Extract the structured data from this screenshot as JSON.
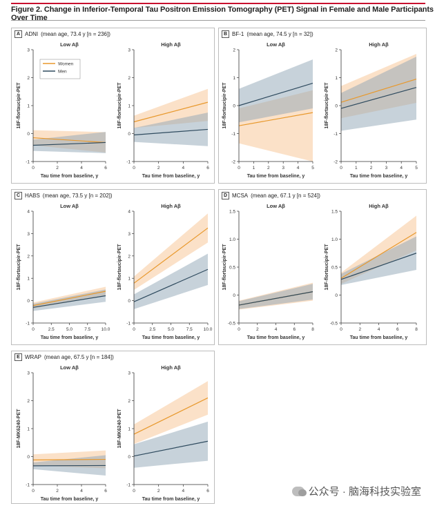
{
  "figure_title": "Figure 2. Change in Inferior-Temporal Tau Positron Emission Tomography (PET) Signal in Female and Male Participants Over Time",
  "colors": {
    "women": "#e8982b",
    "men": "#2e4a5e",
    "women_band": "#f7c99a",
    "men_band": "#8fa6b6",
    "accent": "#c8102e"
  },
  "watermark": "公众号 · 脑海科技实验室",
  "panels": [
    {
      "letter": "A",
      "cohort": "ADNI",
      "detail": "(mean age, 73.4 y [n = 236])"
    },
    {
      "letter": "B",
      "cohort": "BF-1",
      "detail": "(mean age, 74.5 y [n = 32])"
    },
    {
      "letter": "C",
      "cohort": "HABS",
      "detail": "(mean age, 73.5 y [n = 202])"
    },
    {
      "letter": "D",
      "cohort": "MCSA",
      "detail": "(mean age, 67.1 y [n = 524])"
    },
    {
      "letter": "E",
      "cohort": "WRAP",
      "detail": "(mean age, 67.5 y [n = 184])"
    }
  ],
  "chart_data": [
    {
      "id": "A-low",
      "type": "line",
      "title": "Low Aβ",
      "xlabel": "Tau time from baseline, y",
      "ylabel": "18F-flortaucipir-PET",
      "xlim": [
        0,
        6
      ],
      "ylim": [
        -1,
        3
      ],
      "xticks": [
        "0",
        "2",
        "4",
        "6"
      ],
      "yticks": [
        "-1",
        "0",
        "1",
        "2",
        "3"
      ],
      "legend": [
        "Women",
        "Men"
      ],
      "series": [
        {
          "name": "Women",
          "x": [
            0,
            6
          ],
          "y": [
            -0.15,
            -0.32
          ],
          "lower": [
            -0.42,
            -0.68
          ],
          "upper": [
            0.12,
            0.05
          ]
        },
        {
          "name": "Men",
          "x": [
            0,
            6
          ],
          "y": [
            -0.42,
            -0.32
          ],
          "lower": [
            -0.62,
            -0.7
          ],
          "upper": [
            -0.22,
            0.06
          ]
        }
      ]
    },
    {
      "id": "A-high",
      "type": "line",
      "title": "High Aβ",
      "xlabel": "Tau time from baseline, y",
      "ylabel": "18F-flortaucipir-PET",
      "xlim": [
        0,
        6
      ],
      "ylim": [
        -1,
        3
      ],
      "xticks": [
        "0",
        "2",
        "4",
        "6"
      ],
      "yticks": [
        "-1",
        "0",
        "1",
        "2",
        "3"
      ],
      "series": [
        {
          "name": "Women",
          "x": [
            0,
            6
          ],
          "y": [
            0.42,
            1.12
          ],
          "lower": [
            0.2,
            0.45
          ],
          "upper": [
            0.64,
            1.6
          ]
        },
        {
          "name": "Men",
          "x": [
            0,
            6
          ],
          "y": [
            -0.05,
            0.15
          ],
          "lower": [
            -0.3,
            -0.45
          ],
          "upper": [
            0.2,
            0.75
          ]
        }
      ]
    },
    {
      "id": "B-low",
      "type": "line",
      "title": "Low Aβ",
      "xlabel": "Tau time from baseline, y",
      "ylabel": "18F-flortaucipir-PET",
      "xlim": [
        0,
        5
      ],
      "ylim": [
        -2,
        2
      ],
      "xticks": [
        "0",
        "1",
        "2",
        "3",
        "4",
        "5"
      ],
      "yticks": [
        "-2",
        "-1",
        "0",
        "1",
        "2"
      ],
      "series": [
        {
          "name": "Women",
          "x": [
            0,
            5
          ],
          "y": [
            -0.72,
            -0.25
          ],
          "lower": [
            -1.35,
            -2.0
          ],
          "upper": [
            -0.1,
            0.55
          ]
        },
        {
          "name": "Men",
          "x": [
            0,
            5
          ],
          "y": [
            0.0,
            0.8
          ],
          "lower": [
            -0.6,
            -0.1
          ],
          "upper": [
            0.6,
            1.65
          ]
        }
      ]
    },
    {
      "id": "B-high",
      "type": "line",
      "title": "High Aβ",
      "xlabel": "Tau time from baseline, y",
      "ylabel": "18F-flortaucipir-PET",
      "xlim": [
        0,
        5
      ],
      "ylim": [
        -2,
        2
      ],
      "xticks": [
        "0",
        "1",
        "2",
        "3",
        "4",
        "5"
      ],
      "yticks": [
        "-2",
        "-1",
        "0",
        "1",
        "2"
      ],
      "series": [
        {
          "name": "Women",
          "x": [
            0,
            5
          ],
          "y": [
            0.12,
            0.95
          ],
          "lower": [
            -0.45,
            0.1
          ],
          "upper": [
            0.7,
            1.85
          ]
        },
        {
          "name": "Men",
          "x": [
            0,
            5
          ],
          "y": [
            -0.1,
            0.65
          ],
          "lower": [
            -0.9,
            -0.5
          ],
          "upper": [
            0.45,
            1.75
          ]
        }
      ]
    },
    {
      "id": "C-low",
      "type": "line",
      "title": "Low Aβ",
      "xlabel": "Tau time from baseline, y",
      "ylabel": "18F-flortaucipir-PET",
      "xlim": [
        0,
        10
      ],
      "ylim": [
        -1,
        4
      ],
      "xticks": [
        "0",
        "2.5",
        "5.0",
        "7.5",
        "10.0"
      ],
      "yticks": [
        "-1",
        "0",
        "1",
        "2",
        "3",
        "4"
      ],
      "series": [
        {
          "name": "Women",
          "x": [
            0,
            10
          ],
          "y": [
            -0.22,
            0.42
          ],
          "lower": [
            -0.35,
            0.22
          ],
          "upper": [
            -0.08,
            0.62
          ]
        },
        {
          "name": "Men",
          "x": [
            0,
            10
          ],
          "y": [
            -0.3,
            0.22
          ],
          "lower": [
            -0.46,
            -0.05
          ],
          "upper": [
            -0.14,
            0.5
          ]
        }
      ]
    },
    {
      "id": "C-high",
      "type": "line",
      "title": "High Aβ",
      "xlabel": "Tau time from baseline, y",
      "ylabel": "18F-flortaucipir-PET",
      "xlim": [
        0,
        10
      ],
      "ylim": [
        -1,
        4
      ],
      "xticks": [
        "0",
        "2.5",
        "5.0",
        "7.5",
        "10.0"
      ],
      "yticks": [
        "-1",
        "0",
        "1",
        "2",
        "3",
        "4"
      ],
      "series": [
        {
          "name": "Women",
          "x": [
            0,
            10
          ],
          "y": [
            0.78,
            3.25
          ],
          "lower": [
            0.48,
            2.6
          ],
          "upper": [
            1.08,
            3.9
          ]
        },
        {
          "name": "Men",
          "x": [
            0,
            10
          ],
          "y": [
            -0.05,
            1.4
          ],
          "lower": [
            -0.38,
            0.7
          ],
          "upper": [
            0.28,
            2.1
          ]
        }
      ]
    },
    {
      "id": "D-low",
      "type": "line",
      "title": "Low Aβ",
      "xlabel": "Tau time from baseline, y",
      "ylabel": "18F-flortaucipir-PET",
      "xlim": [
        0,
        8
      ],
      "ylim": [
        -0.5,
        1.5
      ],
      "xticks": [
        "0",
        "2",
        "4",
        "6",
        "8"
      ],
      "yticks": [
        "-0.5",
        "0",
        "0.5",
        "1.0",
        "1.5"
      ],
      "series": [
        {
          "name": "Women",
          "x": [
            0,
            8
          ],
          "y": [
            -0.18,
            0.06
          ],
          "lower": [
            -0.26,
            -0.1
          ],
          "upper": [
            -0.1,
            0.22
          ]
        },
        {
          "name": "Men",
          "x": [
            0,
            8
          ],
          "y": [
            -0.18,
            0.06
          ],
          "lower": [
            -0.25,
            -0.08
          ],
          "upper": [
            -0.11,
            0.2
          ]
        }
      ]
    },
    {
      "id": "D-high",
      "type": "line",
      "title": "High Aβ",
      "xlabel": "Tau time from baseline, y",
      "ylabel": "18F-flortaucipir-PET",
      "xlim": [
        0,
        8
      ],
      "ylim": [
        -0.5,
        1.5
      ],
      "xticks": [
        "0",
        "2",
        "4",
        "6",
        "8"
      ],
      "yticks": [
        "-0.5",
        "0",
        "0.5",
        "1.0",
        "1.5"
      ],
      "series": [
        {
          "name": "Women",
          "x": [
            0,
            8
          ],
          "y": [
            0.3,
            1.12
          ],
          "lower": [
            0.2,
            0.8
          ],
          "upper": [
            0.4,
            1.42
          ]
        },
        {
          "name": "Men",
          "x": [
            0,
            8
          ],
          "y": [
            0.28,
            0.75
          ],
          "lower": [
            0.18,
            0.45
          ],
          "upper": [
            0.38,
            1.05
          ]
        }
      ]
    },
    {
      "id": "E-low",
      "type": "line",
      "title": "Low Aβ",
      "xlabel": "Tau time from baseline, y",
      "ylabel": "18F-MK6240-PET",
      "xlim": [
        0,
        6
      ],
      "ylim": [
        -1,
        3
      ],
      "xticks": [
        "0",
        "2",
        "4",
        "6"
      ],
      "yticks": [
        "-1",
        "0",
        "1",
        "2",
        "3"
      ],
      "series": [
        {
          "name": "Women",
          "x": [
            0,
            6
          ],
          "y": [
            -0.12,
            -0.1
          ],
          "lower": [
            -0.32,
            -0.42
          ],
          "upper": [
            0.08,
            0.22
          ]
        },
        {
          "name": "Men",
          "x": [
            0,
            6
          ],
          "y": [
            -0.33,
            -0.32
          ],
          "lower": [
            -0.45,
            -0.68
          ],
          "upper": [
            -0.21,
            0.05
          ]
        }
      ]
    },
    {
      "id": "E-high",
      "type": "line",
      "title": "High Aβ",
      "xlabel": "Tau time from baseline, y",
      "ylabel": "18F-MK6240-PET",
      "xlim": [
        0,
        6
      ],
      "ylim": [
        -1,
        3
      ],
      "xticks": [
        "0",
        "2",
        "4",
        "6"
      ],
      "yticks": [
        "-1",
        "0",
        "1",
        "2",
        "3"
      ],
      "series": [
        {
          "name": "Women",
          "x": [
            0,
            6
          ],
          "y": [
            0.8,
            2.1
          ],
          "lower": [
            0.45,
            1.5
          ],
          "upper": [
            1.15,
            2.7
          ]
        },
        {
          "name": "Men",
          "x": [
            0,
            6
          ],
          "y": [
            0.02,
            0.55
          ],
          "lower": [
            -0.4,
            -0.15
          ],
          "upper": [
            0.44,
            1.25
          ]
        }
      ]
    }
  ]
}
